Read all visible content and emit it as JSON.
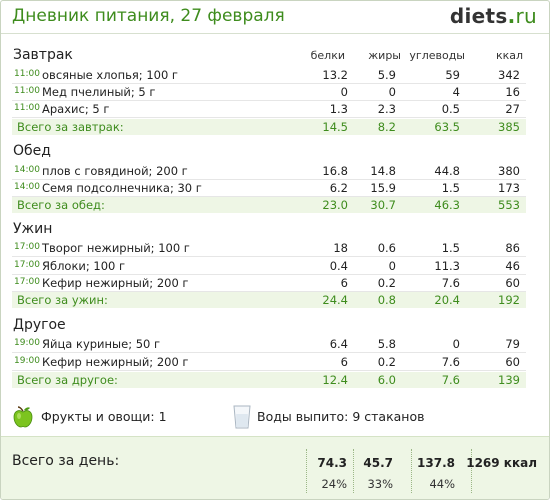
{
  "header": {
    "title": "Дневник питания, 27 февраля",
    "logo_main": "diets",
    "logo_dot": ".",
    "logo_tld": "ru"
  },
  "columns": {
    "protein": "белки",
    "fat": "жиры",
    "carbs": "углеводы",
    "kcal": "ккал"
  },
  "sections": [
    {
      "title": "Завтрак",
      "items": [
        {
          "time": "11:00",
          "name": "овсяные хлопья; 100 г",
          "protein": "13.2",
          "fat": "5.9",
          "carbs": "59",
          "kcal": "342"
        },
        {
          "time": "11:00",
          "name": "Мед пчелиный; 5 г",
          "protein": "0",
          "fat": "0",
          "carbs": "4",
          "kcal": "16"
        },
        {
          "time": "11:00",
          "name": "Арахис; 5 г",
          "protein": "1.3",
          "fat": "2.3",
          "carbs": "0.5",
          "kcal": "27"
        }
      ],
      "total": {
        "label": "Всего за завтрак:",
        "protein": "14.5",
        "fat": "8.2",
        "carbs": "63.5",
        "kcal": "385"
      }
    },
    {
      "title": "Обед",
      "items": [
        {
          "time": "14:00",
          "name": "плов с говядиной; 200 г",
          "protein": "16.8",
          "fat": "14.8",
          "carbs": "44.8",
          "kcal": "380"
        },
        {
          "time": "14:00",
          "name": "Семя подсолнечника; 30 г",
          "protein": "6.2",
          "fat": "15.9",
          "carbs": "1.5",
          "kcal": "173"
        }
      ],
      "total": {
        "label": "Всего за обед:",
        "protein": "23.0",
        "fat": "30.7",
        "carbs": "46.3",
        "kcal": "553"
      }
    },
    {
      "title": "Ужин",
      "items": [
        {
          "time": "17:00",
          "name": "Творог нежирный; 100 г",
          "protein": "18",
          "fat": "0.6",
          "carbs": "1.5",
          "kcal": "86"
        },
        {
          "time": "17:00",
          "name": "Яблоки; 100 г",
          "protein": "0.4",
          "fat": "0",
          "carbs": "11.3",
          "kcal": "46"
        },
        {
          "time": "17:00",
          "name": "Кефир нежирный; 200 г",
          "protein": "6",
          "fat": "0.2",
          "carbs": "7.6",
          "kcal": "60"
        }
      ],
      "total": {
        "label": "Всего за ужин:",
        "protein": "24.4",
        "fat": "0.8",
        "carbs": "20.4",
        "kcal": "192"
      }
    },
    {
      "title": "Другое",
      "items": [
        {
          "time": "19:00",
          "name": "Яйца куриные; 50 г",
          "protein": "6.4",
          "fat": "5.8",
          "carbs": "0",
          "kcal": "79"
        },
        {
          "time": "19:00",
          "name": "Кефир нежирный; 200 г",
          "protein": "6",
          "fat": "0.2",
          "carbs": "7.6",
          "kcal": "60"
        }
      ],
      "total": {
        "label": "Всего за другое:",
        "protein": "12.4",
        "fat": "6.0",
        "carbs": "7.6",
        "kcal": "139"
      }
    }
  ],
  "extras": {
    "fruits": "Фрукты и овощи: 1",
    "water": "Воды выпито: 9 стаканов"
  },
  "day": {
    "label": "Всего за день:",
    "protein": "74.3",
    "fat": "45.7",
    "carbs": "137.8",
    "kcal": "1269 ккал",
    "protein_pct": "24%",
    "fat_pct": "33%",
    "carbs_pct": "44%"
  },
  "colors": {
    "accent": "#3e8c1d",
    "total_bg": "#eef6e5"
  }
}
